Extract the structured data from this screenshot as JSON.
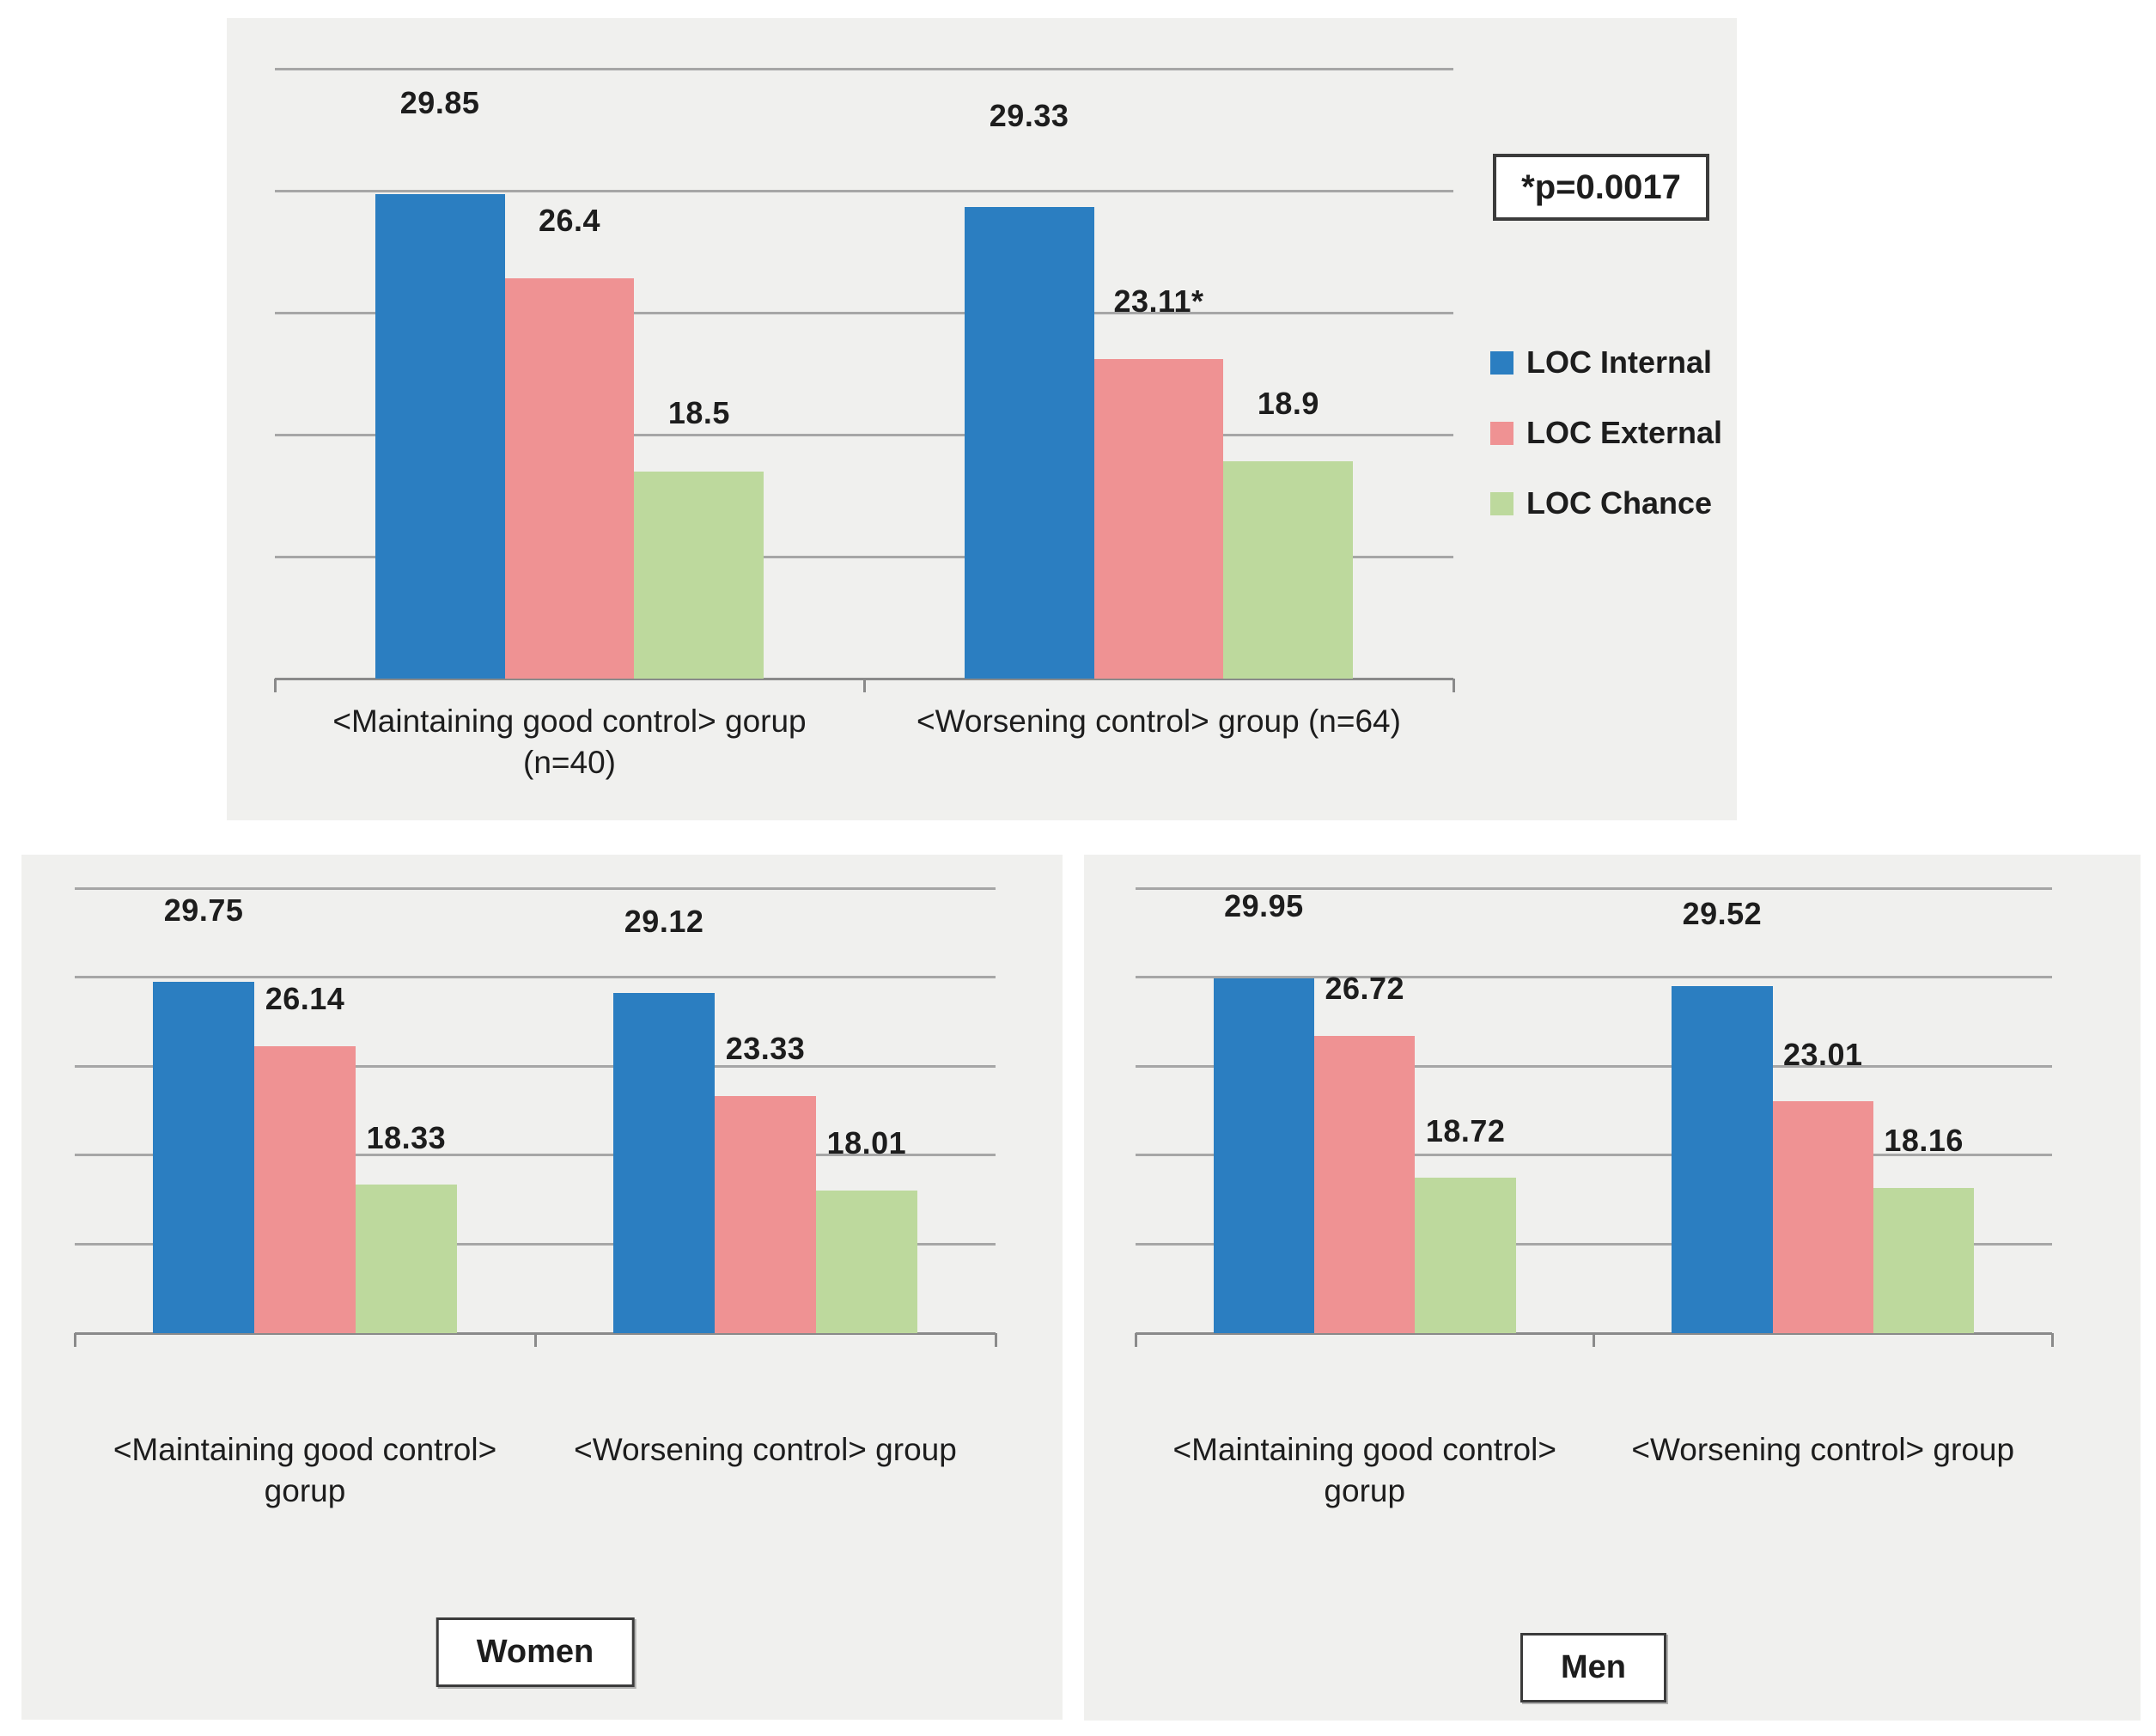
{
  "colors": {
    "internal": "#2b7ec1",
    "external": "#ef9293",
    "chance": "#bdd99d",
    "panel_bg": "#f0f0ee",
    "grid": "#a6a6a6",
    "axis": "#8a8a8a",
    "box_border": "#3b3b3b",
    "text": "#1d1d1d"
  },
  "annotation": {
    "p_value_note": "*p=0.0017"
  },
  "legend": {
    "position": "right",
    "items": [
      {
        "label": "LOC Internal",
        "color_key": "internal"
      },
      {
        "label": "LOC External",
        "color_key": "external"
      },
      {
        "label": "LOC Chance",
        "color_key": "chance"
      }
    ]
  },
  "chart_data": [
    {
      "id": "overall",
      "type": "bar",
      "title": "",
      "categories": [
        "<Maintaining good control> gorup (n=40)",
        "<Worsening control> group (n=64)"
      ],
      "series": [
        {
          "name": "LOC Internal",
          "color_key": "internal",
          "values": [
            29.85,
            29.33
          ],
          "labels": [
            "29.85",
            "29.33"
          ]
        },
        {
          "name": "LOC External",
          "color_key": "external",
          "values": [
            26.4,
            23.11
          ],
          "labels": [
            "26.4",
            "23.11*"
          ]
        },
        {
          "name": "LOC Chance",
          "color_key": "chance",
          "values": [
            18.5,
            18.9
          ],
          "labels": [
            "18.5",
            "18.9"
          ]
        }
      ],
      "ylim": [
        10,
        35
      ],
      "grid_step": 5,
      "grid": "horizontal",
      "y_axis_tick_labels": false,
      "legend_position": "right"
    },
    {
      "id": "women",
      "type": "bar",
      "title": "Women",
      "categories": [
        "<Maintaining good control>\ngorup",
        "<Worsening control> group"
      ],
      "series": [
        {
          "name": "LOC Internal",
          "color_key": "internal",
          "values": [
            29.75,
            29.12
          ],
          "labels": [
            "29.75",
            "29.12"
          ]
        },
        {
          "name": "LOC External",
          "color_key": "external",
          "values": [
            26.14,
            23.33
          ],
          "labels": [
            "26.14",
            "23.33"
          ]
        },
        {
          "name": "LOC Chance",
          "color_key": "chance",
          "values": [
            18.33,
            18.01
          ],
          "labels": [
            "18.33",
            "18.01"
          ]
        }
      ],
      "ylim": [
        10,
        35
      ],
      "grid_step": 5,
      "grid": "horizontal",
      "y_axis_tick_labels": false,
      "legend_position": "none"
    },
    {
      "id": "men",
      "type": "bar",
      "title": "Men",
      "categories": [
        "<Maintaining good control>\ngorup",
        "<Worsening control> group"
      ],
      "series": [
        {
          "name": "LOC Internal",
          "color_key": "internal",
          "values": [
            29.95,
            29.52
          ],
          "labels": [
            "29.95",
            "29.52"
          ]
        },
        {
          "name": "LOC External",
          "color_key": "external",
          "values": [
            26.72,
            23.01
          ],
          "labels": [
            "26.72",
            "23.01"
          ]
        },
        {
          "name": "LOC Chance",
          "color_key": "chance",
          "values": [
            18.72,
            18.16
          ],
          "labels": [
            "18.72",
            "18.16"
          ]
        }
      ],
      "ylim": [
        10,
        35
      ],
      "grid_step": 5,
      "grid": "horizontal",
      "y_axis_tick_labels": false,
      "legend_position": "none"
    }
  ]
}
